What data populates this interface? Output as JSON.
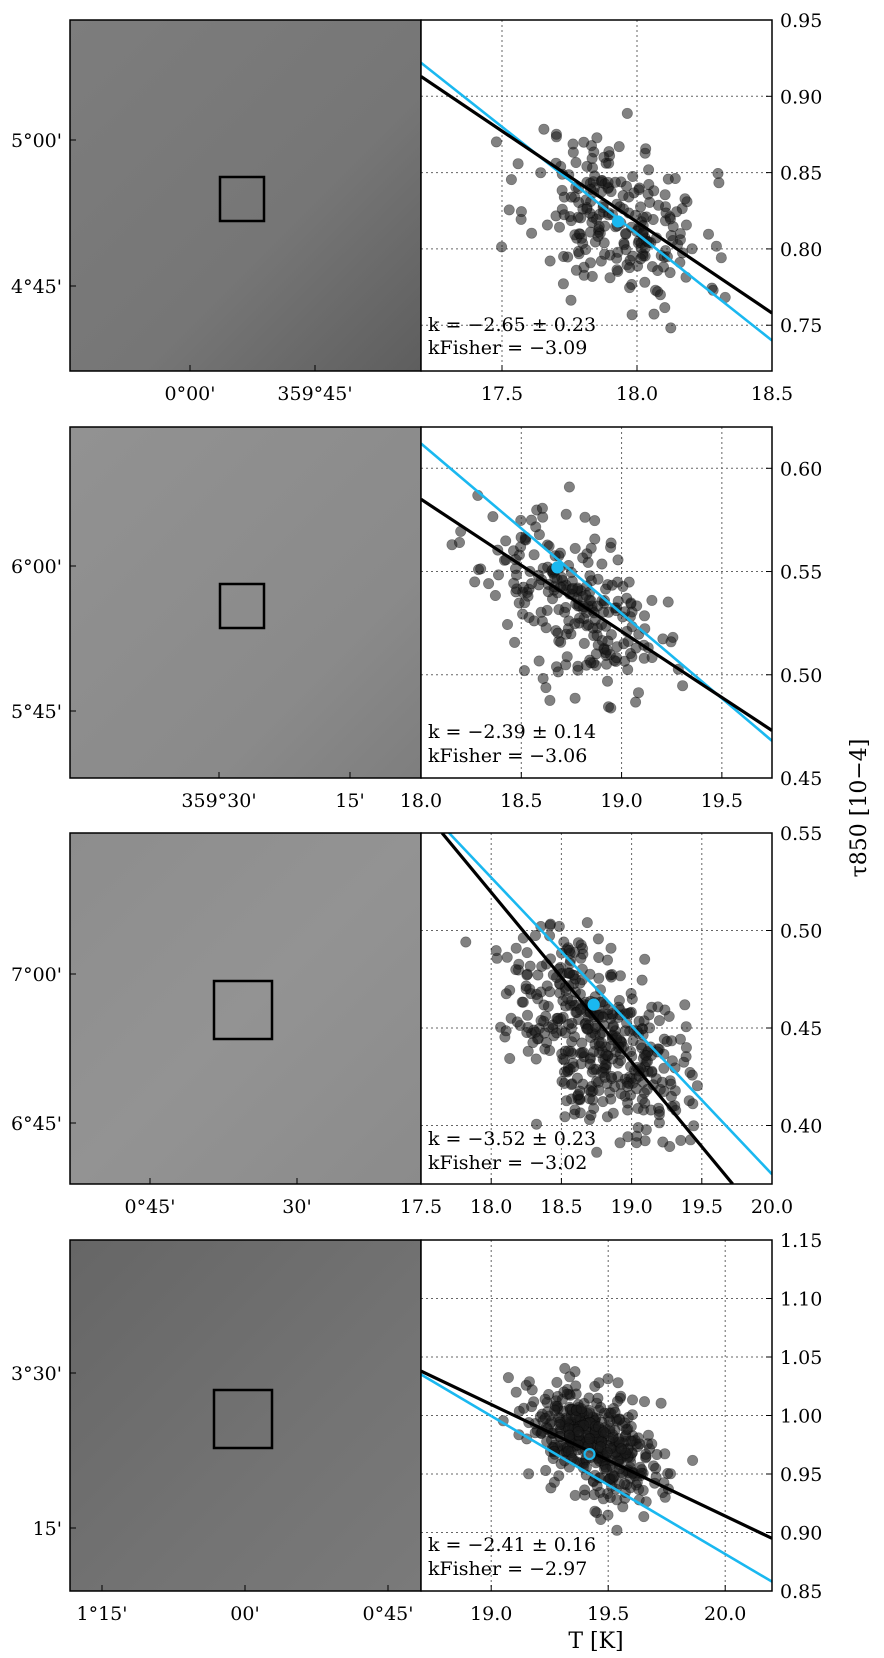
{
  "figure": {
    "ylabel": "τ850 [10−4]",
    "xlabel": "T [K]"
  },
  "panels": [
    {
      "map": {
        "xticks": [
          "0°00'",
          "359°45'"
        ],
        "yticks": [
          "5°00'",
          "4°45'"
        ],
        "shade": "#7a7a7a",
        "box_size": "small"
      },
      "chart_data": {
        "type": "scatter",
        "xlim": [
          17.2,
          18.5
        ],
        "ylim": [
          0.72,
          0.95
        ],
        "xticks": [
          "17.5",
          "18.0",
          "18.5"
        ],
        "yticks": [
          "0.75",
          "0.80",
          "0.85",
          "0.90",
          "0.95"
        ],
        "grid": true,
        "annotation": {
          "k": "k = −2.65 ± 0.23",
          "k_fisher": "kFisher = −3.09"
        },
        "lines": [
          {
            "name": "k",
            "color": "#000000",
            "x": [
              17.2,
              18.5
            ],
            "y": [
              0.913,
              0.758
            ]
          },
          {
            "name": "kFisher",
            "color": "#1ab8f0",
            "x": [
              17.2,
              18.5
            ],
            "y": [
              0.922,
              0.74
            ]
          }
        ],
        "center": {
          "x": 17.93,
          "y": 0.818
        },
        "cloud": {
          "n": 230,
          "cx": 17.93,
          "cy": 0.82,
          "sx": 0.16,
          "sy": 0.026,
          "slope": -0.06,
          "seed": 11
        }
      }
    },
    {
      "map": {
        "xticks": [
          "359°30'",
          "15'"
        ],
        "yticks": [
          "6°00'",
          "5°45'"
        ],
        "shade": "#8c8c8c",
        "box_size": "small"
      },
      "chart_data": {
        "type": "scatter",
        "xlim": [
          18.0,
          19.75
        ],
        "ylim": [
          0.45,
          0.62
        ],
        "xticks": [
          "18.0",
          "18.5",
          "19.0",
          "19.5"
        ],
        "yticks": [
          "0.45",
          "0.50",
          "0.55",
          "0.60"
        ],
        "grid": true,
        "annotation": {
          "k": "k = −2.39 ± 0.14",
          "k_fisher": "kFisher = −3.06"
        },
        "lines": [
          {
            "name": "k",
            "color": "#000000",
            "x": [
              18.0,
              19.75
            ],
            "y": [
              0.585,
              0.473
            ]
          },
          {
            "name": "kFisher",
            "color": "#1ab8f0",
            "x": [
              18.0,
              19.75
            ],
            "y": [
              0.612,
              0.468
            ]
          }
        ],
        "center": {
          "x": 18.68,
          "y": 0.552
        },
        "cloud": {
          "n": 240,
          "cx": 18.75,
          "cy": 0.535,
          "sx": 0.22,
          "sy": 0.018,
          "slope": -0.055,
          "seed": 23
        }
      }
    },
    {
      "map": {
        "xticks": [
          "0°45'",
          "30'"
        ],
        "yticks": [
          "7°00'",
          "6°45'"
        ],
        "shade": "#8f8f8f",
        "box_size": "large"
      },
      "chart_data": {
        "type": "scatter",
        "xlim": [
          17.5,
          20.0
        ],
        "ylim": [
          0.37,
          0.55
        ],
        "xticks": [
          "17.5",
          "18.0",
          "18.5",
          "19.0",
          "19.5",
          "20.0"
        ],
        "yticks": [
          "0.40",
          "0.45",
          "0.50",
          "0.55"
        ],
        "grid": true,
        "annotation": {
          "k": "k = −3.52 ± 0.23",
          "k_fisher": "kFisher = −3.02"
        },
        "lines": [
          {
            "name": "k",
            "color": "#000000",
            "x": [
              17.65,
              19.72
            ],
            "y": [
              0.55,
              0.37
            ]
          },
          {
            "name": "kFisher",
            "color": "#1ab8f0",
            "x": [
              17.7,
              20.0
            ],
            "y": [
              0.55,
              0.375
            ]
          }
        ],
        "center": {
          "x": 18.73,
          "y": 0.462
        },
        "cloud": {
          "n": 420,
          "cx": 18.75,
          "cy": 0.448,
          "sx": 0.3,
          "sy": 0.022,
          "slope": -0.04,
          "seed": 37
        }
      }
    },
    {
      "map": {
        "xticks": [
          "1°15'",
          "00'",
          "0°45'"
        ],
        "yticks": [
          "3°30'",
          "15'"
        ],
        "shade": "#737373",
        "box_size": "large"
      },
      "chart_data": {
        "type": "scatter",
        "xlim": [
          18.7,
          20.2
        ],
        "ylim": [
          0.85,
          1.15
        ],
        "xticks": [
          "19.0",
          "19.5",
          "20.0"
        ],
        "yticks": [
          "0.85",
          "0.90",
          "0.95",
          "1.00",
          "1.05",
          "1.10",
          "1.15"
        ],
        "grid": true,
        "annotation": {
          "k": "k = −2.41 ± 0.16",
          "k_fisher": "kFisher = −2.97"
        },
        "lines": [
          {
            "name": "k",
            "color": "#000000",
            "x": [
              18.7,
              20.2
            ],
            "y": [
              1.038,
              0.895
            ]
          },
          {
            "name": "kFisher",
            "color": "#1ab8f0",
            "x": [
              18.7,
              20.2
            ],
            "y": [
              1.035,
              0.858
            ]
          }
        ],
        "center": {
          "x": 19.42,
          "y": 0.967
        },
        "cloud": {
          "n": 420,
          "cx": 19.45,
          "cy": 0.975,
          "sx": 0.15,
          "sy": 0.022,
          "slope": -0.08,
          "seed": 53
        }
      }
    }
  ]
}
